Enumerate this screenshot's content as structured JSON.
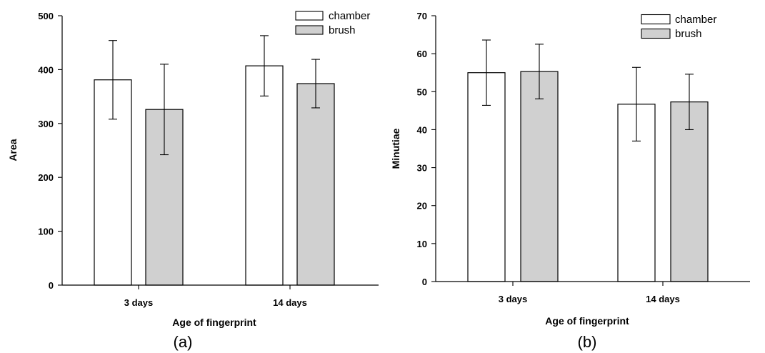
{
  "colors": {
    "chamber": "#ffffff",
    "brush": "#d0d0d0",
    "stroke": "#000000"
  },
  "chart_data": [
    {
      "type": "bar",
      "panel_label": "(a)",
      "categories": [
        "3 days",
        "14 days"
      ],
      "series": [
        {
          "name": "chamber",
          "values": [
            381,
            407
          ],
          "errors": [
            73,
            56
          ]
        },
        {
          "name": "brush",
          "values": [
            326,
            374
          ],
          "errors": [
            84,
            45
          ]
        }
      ],
      "xlabel": "Age of fingerprint",
      "ylabel": "Area",
      "ylim": [
        0,
        500
      ],
      "yticks": [
        0,
        100,
        200,
        300,
        400,
        500
      ],
      "legend": "top-right",
      "grid": false
    },
    {
      "type": "bar",
      "panel_label": "(b)",
      "categories": [
        "3 days",
        "14 days"
      ],
      "series": [
        {
          "name": "chamber",
          "values": [
            55,
            46.7
          ],
          "errors": [
            8.6,
            9.7
          ]
        },
        {
          "name": "brush",
          "values": [
            55.3,
            47.3
          ],
          "errors": [
            7.2,
            7.3
          ]
        }
      ],
      "xlabel": "Age of fingerprint",
      "ylabel": "Minutiae",
      "ylim": [
        0,
        70
      ],
      "yticks": [
        0,
        10,
        20,
        30,
        40,
        50,
        60,
        70
      ],
      "legend": "top-right",
      "grid": false
    }
  ]
}
